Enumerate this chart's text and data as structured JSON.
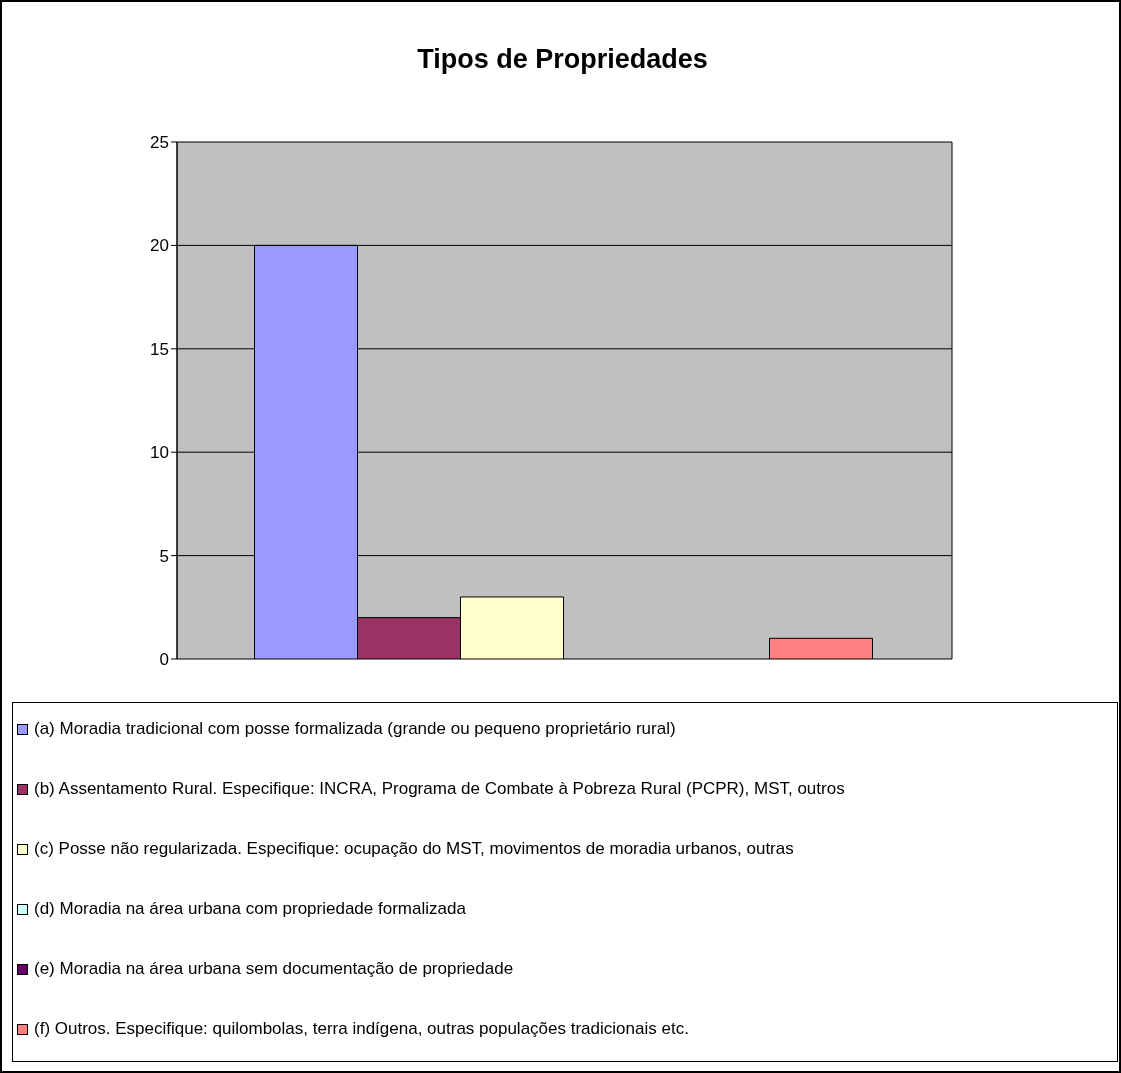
{
  "chart_data": {
    "type": "bar",
    "title": "Tipos de Propriedades",
    "categories": [
      null
    ],
    "series": [
      {
        "name": "(a) Moradia tradicional com posse formalizada (grande ou pequeno proprietário rural)",
        "color": "#9999ff",
        "values": [
          20
        ]
      },
      {
        "name": "(b) Assentamento Rural.  Especifique: INCRA, Programa de Combate à Pobreza Rural (PCPR), MST, outros",
        "color": "#993366",
        "values": [
          2
        ]
      },
      {
        "name": "(c) Posse não regularizada.  Especifique: ocupação do MST, movimentos de moradia urbanos, outras",
        "color": "#ffffcc",
        "values": [
          3
        ]
      },
      {
        "name": "(d) Moradia na área urbana com propriedade formalizada",
        "color": "#ccffff",
        "values": [
          0
        ]
      },
      {
        "name": "(e) Moradia na área urbana sem documentação de propriedade",
        "color": "#660066",
        "values": [
          0
        ]
      },
      {
        "name": "(f) Outros. Especifique: quilombolas, terra indígena, outras populações tradicionais etc.",
        "color": "#ff8080",
        "values": [
          1
        ]
      }
    ],
    "ylim": [
      0,
      25
    ],
    "yticks": [
      0,
      5,
      10,
      15,
      20,
      25
    ],
    "grid": "y",
    "legend": "bottom"
  }
}
